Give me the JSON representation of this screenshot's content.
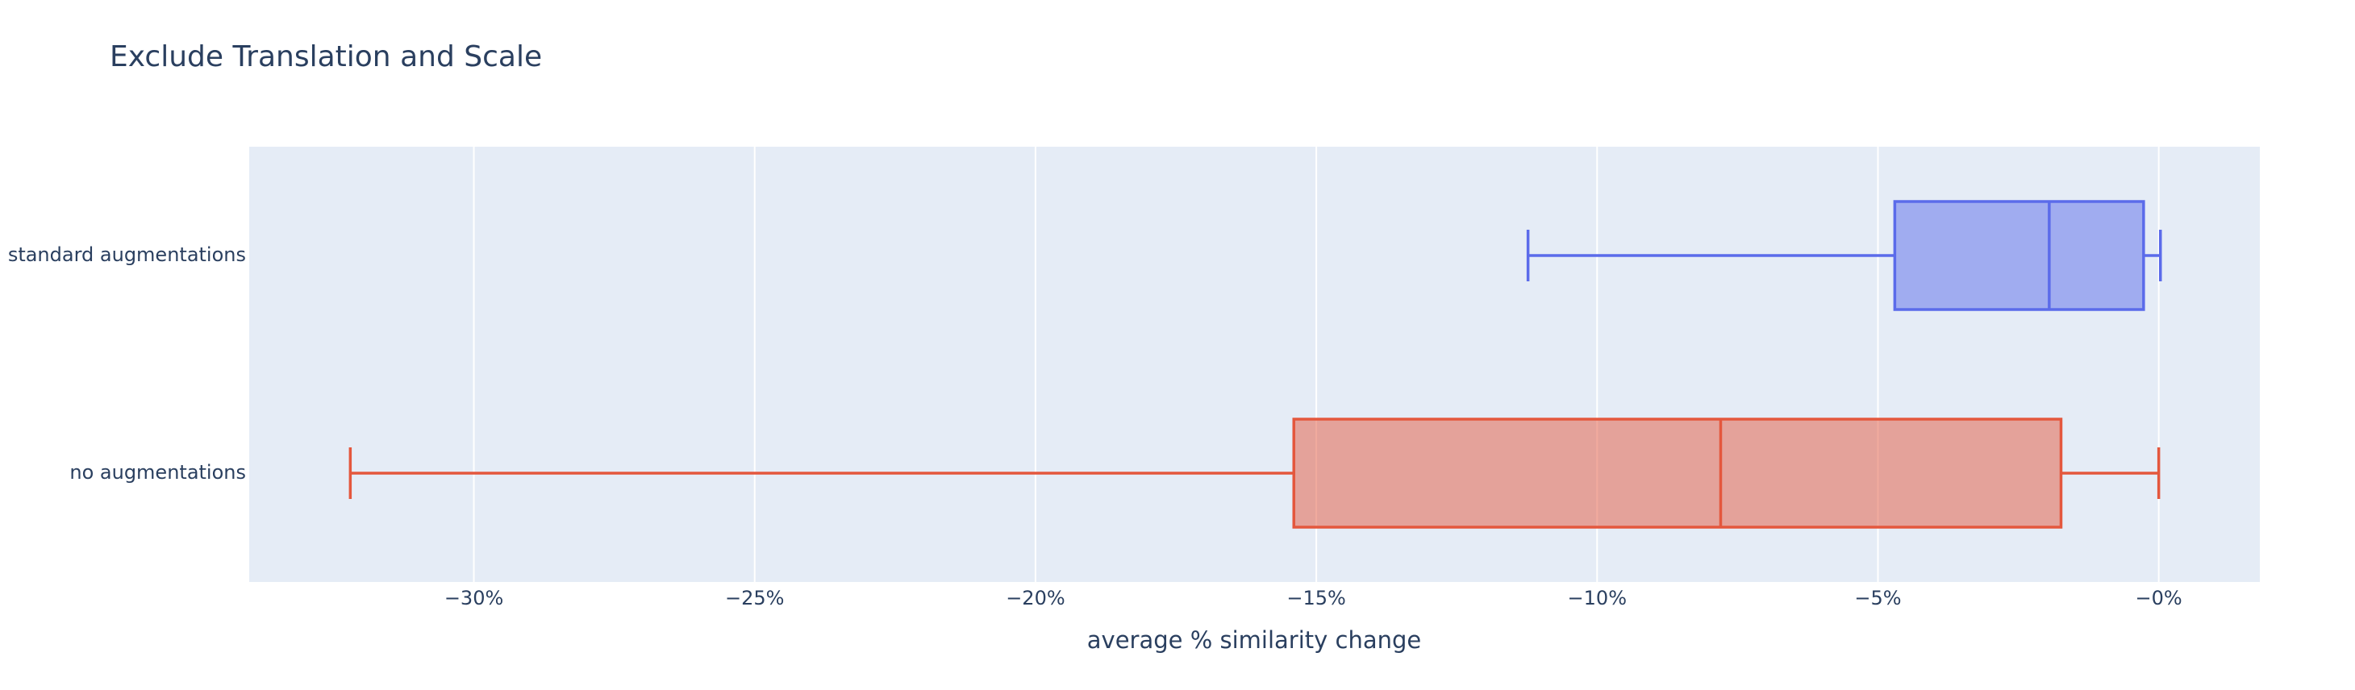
{
  "chart_data": {
    "type": "box",
    "title": "Exclude Translation and Scale",
    "x_label": "average % similarity change",
    "xlim": [
      -34,
      1.8
    ],
    "xticks": [
      {
        "value": -30,
        "label": "−30%"
      },
      {
        "value": -25,
        "label": "−25%"
      },
      {
        "value": -20,
        "label": "−20%"
      },
      {
        "value": -15,
        "label": "−15%"
      },
      {
        "value": -10,
        "label": "−10%"
      },
      {
        "value": -5,
        "label": "−5%"
      },
      {
        "value": 0,
        "label": "−0%"
      }
    ],
    "grid": true,
    "series": [
      {
        "name": "no augmentations",
        "color": "#e4573d",
        "min": -32.2,
        "q1": -15.4,
        "median": -7.8,
        "q3": -1.74,
        "max": 0
      },
      {
        "name": "standard augmentations",
        "color": "#5b6bea",
        "min": -11.23,
        "q1": -4.7,
        "median": -1.95,
        "q3": -0.27,
        "max": 0.03
      }
    ]
  }
}
